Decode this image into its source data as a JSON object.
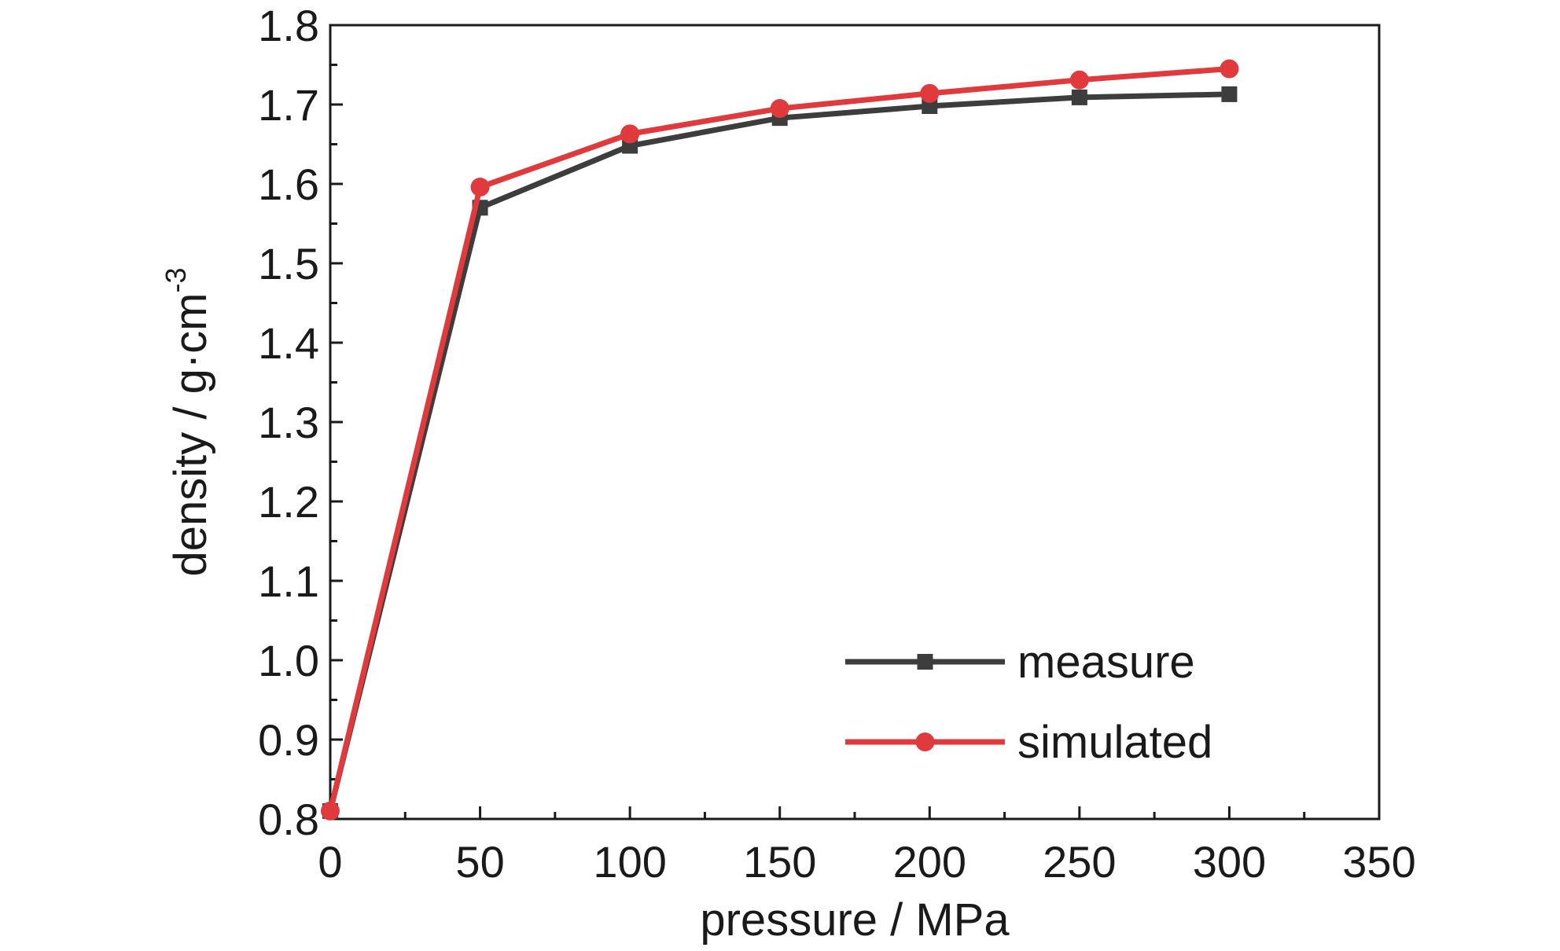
{
  "chart_data": {
    "type": "line",
    "xlabel": "pressure / MPa",
    "ylabel": "density / g·cm",
    "ylabel_superscript": "-3",
    "xlim": [
      0,
      350
    ],
    "ylim": [
      0.8,
      1.8
    ],
    "x_ticks": [
      "0",
      "50",
      "100",
      "150",
      "200",
      "250",
      "300",
      "350"
    ],
    "y_ticks": [
      "0.8",
      "0.9",
      "1.0",
      "1.1",
      "1.2",
      "1.3",
      "1.4",
      "1.5",
      "1.6",
      "1.7",
      "1.8"
    ],
    "grid": false,
    "legend_position": "bottom-right",
    "x": [
      0,
      50,
      100,
      150,
      200,
      250,
      300
    ],
    "series": [
      {
        "name": "measure",
        "color": "#3d3d3d",
        "marker": "square",
        "values": [
          0.81,
          1.57,
          1.648,
          1.683,
          1.698,
          1.709,
          1.713
        ]
      },
      {
        "name": "simulated",
        "color": "#e03a3c",
        "marker": "circle",
        "values": [
          0.81,
          1.596,
          1.663,
          1.695,
          1.714,
          1.731,
          1.745
        ]
      }
    ]
  }
}
